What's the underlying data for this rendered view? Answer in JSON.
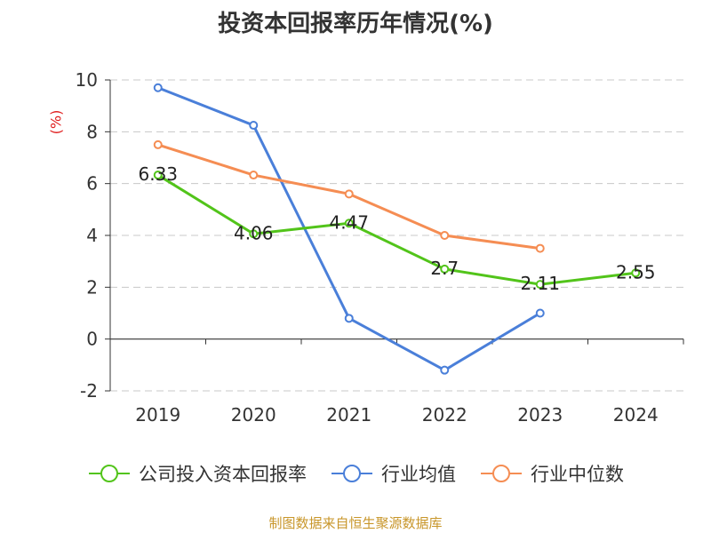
{
  "chart_data": {
    "type": "line",
    "title": "投资本回报率历年情况(%)",
    "ylabel": "(%)",
    "xlabel": "",
    "categories": [
      "2019",
      "2020",
      "2021",
      "2022",
      "2023",
      "2024"
    ],
    "ylim": [
      -2,
      10
    ],
    "yticks": [
      -2,
      0,
      2,
      4,
      6,
      8,
      10
    ],
    "grid": true,
    "legend_position": "bottom",
    "series": [
      {
        "name": "公司投入资本回报率",
        "color": "#52c41a",
        "values": [
          6.33,
          4.06,
          4.47,
          2.7,
          2.11,
          2.55
        ],
        "labels": [
          "6.33",
          "4.06",
          "4.47",
          "2.7",
          "2.11",
          "2.55"
        ]
      },
      {
        "name": "行业均值",
        "color": "#4a7fd9",
        "values": [
          9.7,
          8.25,
          0.8,
          -1.2,
          1.0,
          null
        ]
      },
      {
        "name": "行业中位数",
        "color": "#f58d53",
        "values": [
          7.5,
          6.33,
          5.6,
          4.0,
          3.5,
          null
        ]
      }
    ]
  },
  "source": "制图数据来自恒生聚源数据库"
}
